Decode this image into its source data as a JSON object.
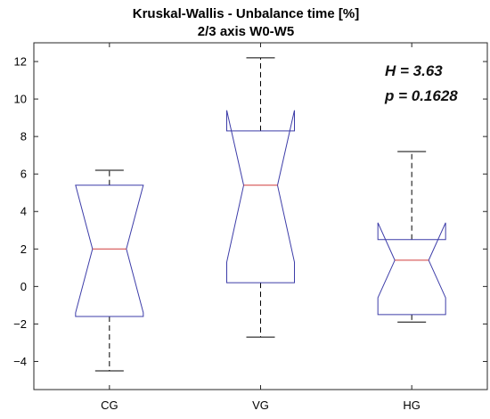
{
  "chart_data": {
    "type": "boxplot",
    "notched": true,
    "title": "Kruskal-Wallis - Unbalance time [%]",
    "subtitle": "2/3 axis W0-W5",
    "xlabel": "",
    "ylabel": "",
    "ylim": [
      -5.5,
      13
    ],
    "yticks": [
      -4,
      -2,
      0,
      2,
      4,
      6,
      8,
      10,
      12
    ],
    "ytick_labels": [
      "−4",
      "−2",
      "0",
      "2",
      "4",
      "6",
      "8",
      "10",
      "12"
    ],
    "categories": [
      "CG",
      "VG",
      "HG"
    ],
    "boxes": [
      {
        "name": "CG",
        "whisker_low": -4.5,
        "q1": -1.6,
        "notch_low": -1.4,
        "median": 2.0,
        "notch_high": 5.4,
        "q3": 5.4,
        "whisker_high": 6.2
      },
      {
        "name": "VG",
        "whisker_low": -2.7,
        "q1": 0.2,
        "notch_low": 1.3,
        "median": 5.4,
        "notch_high": 9.4,
        "q3": 8.3,
        "whisker_high": 12.2
      },
      {
        "name": "HG",
        "whisker_low": -1.9,
        "q1": -1.5,
        "notch_low": -0.6,
        "median": 1.4,
        "notch_high": 3.4,
        "q3": 2.5,
        "whisker_high": 7.2
      }
    ],
    "annotations": [
      "H = 3.63",
      "p = 0.1628"
    ],
    "grid": false,
    "colors": {
      "box": "#3c3ca8",
      "median": "#d03c3c",
      "whisker": "#000000",
      "axis": "#262626"
    }
  }
}
